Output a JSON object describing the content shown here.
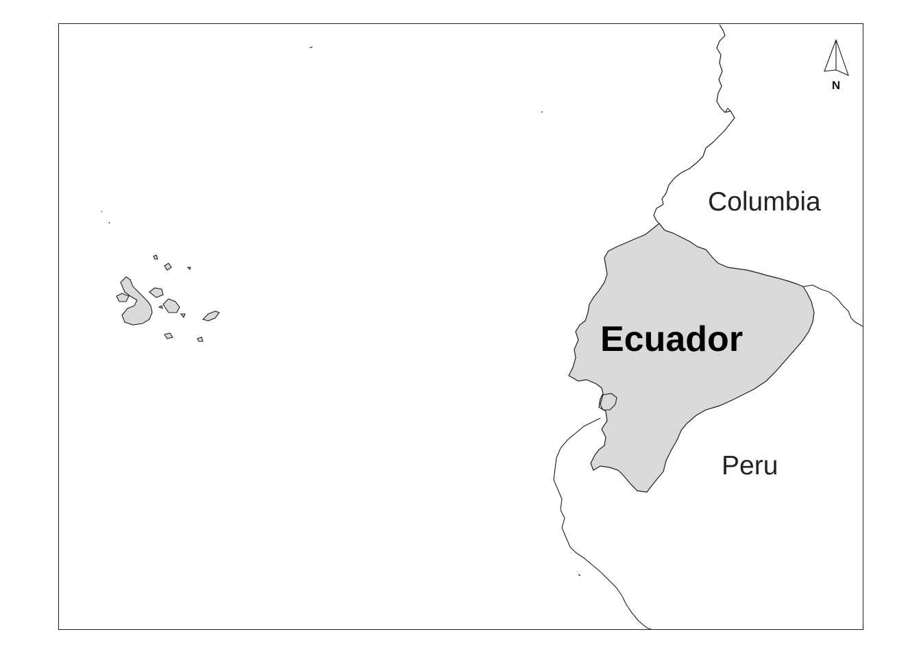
{
  "map": {
    "countries": {
      "primary": "Ecuador",
      "north": "Columbia",
      "south": "Peru"
    },
    "north_arrow": {
      "label": "N"
    },
    "colors": {
      "highlight_fill": "#d9d9d9",
      "outline": "#1a1a1a",
      "background": "#ffffff"
    }
  }
}
